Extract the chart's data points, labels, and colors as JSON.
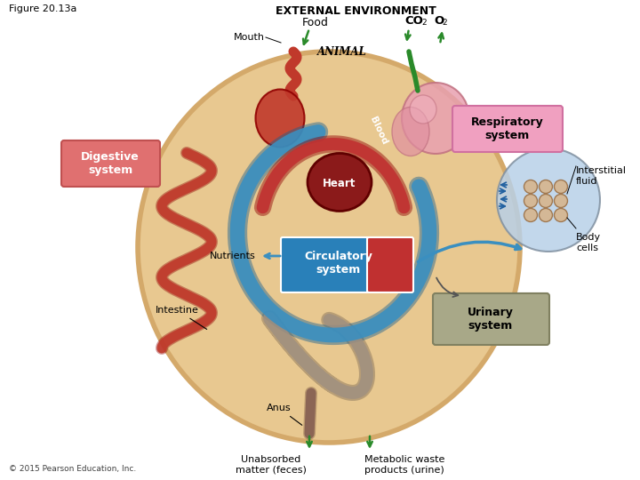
{
  "title": "Figure 20.13a",
  "external_env_label": "EXTERNAL ENVIRONMENT",
  "labels": {
    "food": "Food",
    "mouth": "Mouth",
    "animal": "Animal",
    "digestive": "Digestive\nsystem",
    "respiratory": "Respiratory\nsystem",
    "heart": "Heart",
    "interstitial": "Interstitial\nfluid",
    "nutrients": "Nutrients",
    "circulatory": "Circulatory\nsystem",
    "body_cells": "Body\ncells",
    "urinary": "Urinary\nsystem",
    "intestine": "Intestine",
    "anus": "Anus",
    "unabsorbed": "Unabsorbed\nmatter (feces)",
    "metabolic": "Metabolic waste\nproducts (urine)",
    "blood": "Blood",
    "copyright": "© 2015 Pearson Education, Inc."
  },
  "colors": {
    "body_fill": "#E8C890",
    "body_outline": "#D4A96A",
    "digestive_red": "#C0392B",
    "blood_blue": "#3A8FC0",
    "heart_dark": "#8B1A1A",
    "circ_blue": "#2980B9",
    "circ_red": "#C03030",
    "resp_pink": "#E8A0B0",
    "gray_tube": "#A09080",
    "brown_tube": "#8B6555",
    "interstitial_blue": "#B8D0E8",
    "label_box_pink": "#F0A0C0",
    "label_box_red": "#E07070",
    "label_box_gray": "#A8A888",
    "white": "#FFFFFF",
    "black": "#000000",
    "dark_green": "#2A8A2A",
    "body_cells_tan": "#D4B896",
    "body_cells_edge": "#A07850"
  }
}
